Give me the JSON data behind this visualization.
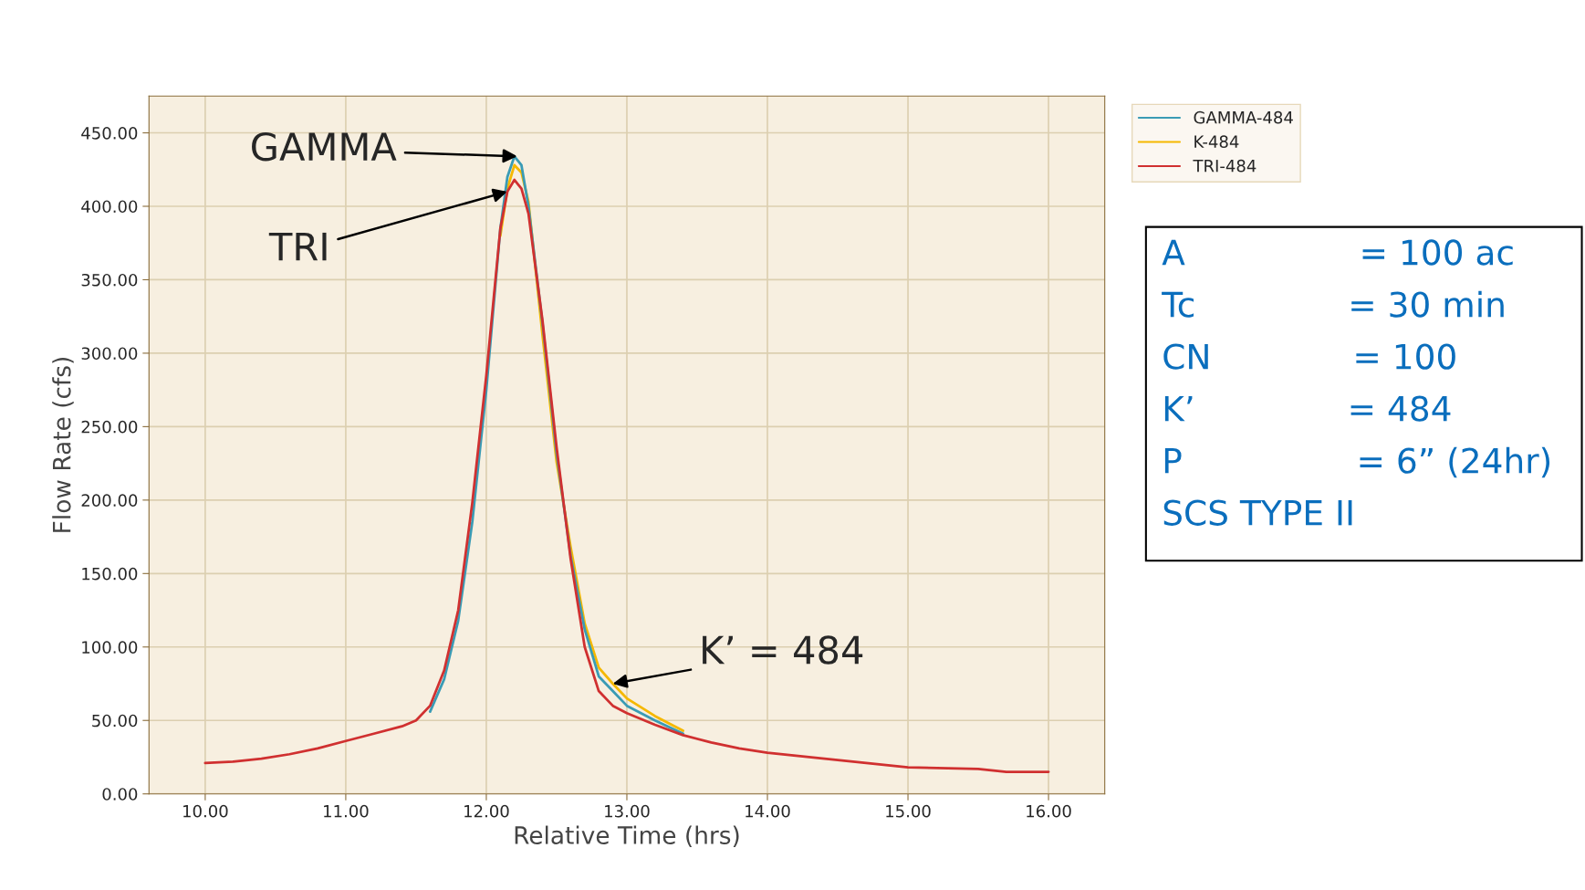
{
  "chart_data": {
    "type": "line",
    "xlabel": "Relative Time (hrs)",
    "ylabel": "Flow Rate (cfs)",
    "xlim": [
      9.6,
      16.4
    ],
    "ylim": [
      0,
      475
    ],
    "xticks": [
      {
        "value": 10,
        "label": "10.00"
      },
      {
        "value": 11,
        "label": "11.00"
      },
      {
        "value": 12,
        "label": "12.00"
      },
      {
        "value": 13,
        "label": "13.00"
      },
      {
        "value": 14,
        "label": "14.00"
      },
      {
        "value": 15,
        "label": "15.00"
      },
      {
        "value": 16,
        "label": "16.00"
      }
    ],
    "yticks": [
      {
        "value": 0,
        "label": "0.00"
      },
      {
        "value": 50,
        "label": "50.00"
      },
      {
        "value": 100,
        "label": "100.00"
      },
      {
        "value": 150,
        "label": "150.00"
      },
      {
        "value": 200,
        "label": "200.00"
      },
      {
        "value": 250,
        "label": "250.00"
      },
      {
        "value": 300,
        "label": "300.00"
      },
      {
        "value": 350,
        "label": "350.00"
      },
      {
        "value": 400,
        "label": "400.00"
      },
      {
        "value": 450,
        "label": "450.00"
      }
    ],
    "grid": true,
    "legend": "top right",
    "x": [
      10.0,
      10.2,
      10.4,
      10.6,
      10.8,
      11.0,
      11.2,
      11.4,
      11.5,
      11.6,
      11.7,
      11.8,
      11.9,
      12.0,
      12.05,
      12.1,
      12.15,
      12.2,
      12.25,
      12.3,
      12.4,
      12.5,
      12.6,
      12.7,
      12.8,
      12.9,
      13.0,
      13.2,
      13.4,
      13.6,
      13.8,
      14.0,
      14.5,
      15.0,
      15.5,
      15.7,
      16.0
    ],
    "series": [
      {
        "name": "GAMMA-484",
        "color": "#3a9bb5",
        "values": [
          null,
          null,
          null,
          null,
          null,
          null,
          null,
          null,
          null,
          56,
          78,
          118,
          185,
          275,
          330,
          385,
          420,
          434,
          428,
          400,
          320,
          232,
          162,
          112,
          80,
          70,
          60,
          50,
          41,
          null,
          null,
          null,
          null,
          null,
          null,
          null,
          null
        ]
      },
      {
        "name": "K-484",
        "color": "#f5b800",
        "values": [
          null,
          null,
          null,
          null,
          null,
          null,
          null,
          null,
          null,
          null,
          null,
          null,
          null,
          null,
          null,
          380,
          412,
          428,
          423,
          403,
          312,
          226,
          168,
          116,
          86,
          75,
          65,
          53,
          43,
          null,
          null,
          null,
          null,
          null,
          null,
          null,
          null
        ]
      },
      {
        "name": "TRI-484",
        "color": "#d03030",
        "values": [
          21,
          22,
          24,
          27,
          31,
          36,
          41,
          46,
          50,
          60,
          84,
          125,
          198,
          285,
          335,
          385,
          410,
          418,
          412,
          395,
          322,
          236,
          160,
          100,
          70,
          60,
          55,
          47,
          40,
          35,
          31,
          28,
          23,
          18,
          17,
          15,
          15
        ]
      }
    ],
    "annotations": [
      {
        "text": "GAMMA",
        "x": 12.22,
        "y": 434
      },
      {
        "text": "TRI",
        "x": 12.15,
        "y": 410
      },
      {
        "text": "K’ = 484",
        "x": 12.9,
        "y": 75
      },
      "A                = 100 ac",
      "Tc              = 30 min",
      "CN             = 100",
      "K’              = 484",
      "P                = 6” (24hr)",
      "SCS TYPE II"
    ]
  }
}
